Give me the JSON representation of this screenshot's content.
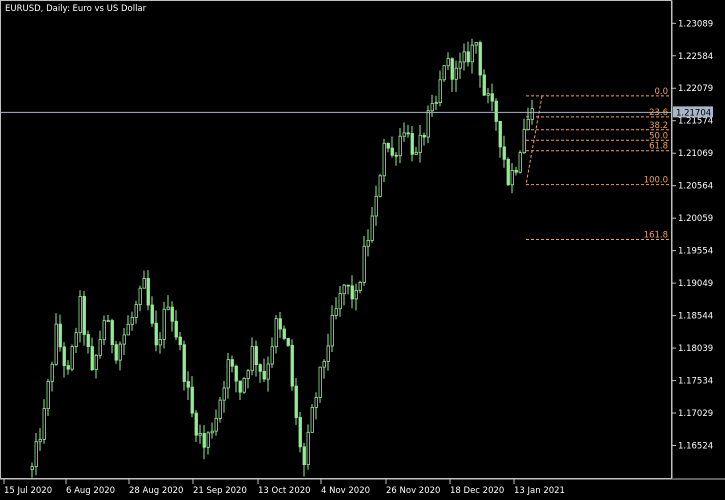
{
  "header": {
    "title": "EURUSD, Daily:  Euro vs US Dollar"
  },
  "colors": {
    "background": "#000000",
    "frame": "#c0c0c0",
    "candles": "#90ee90",
    "fibo": "#f0a050",
    "price_line": "#a7b6c8",
    "price_label_bg": "#a7b6c8",
    "text": "#ffffff"
  },
  "chart_data": {
    "type": "candlestick",
    "symbol": "EURUSD",
    "timeframe": "Daily",
    "y_ticks": [
      "1.23089",
      "1.22584",
      "1.22079",
      "1.21574",
      "1.21069",
      "1.20564",
      "1.20059",
      "1.19554",
      "1.19049",
      "1.18544",
      "1.18039",
      "1.17534",
      "1.17029",
      "1.16524"
    ],
    "x_ticks": [
      "15 Jul 2020",
      "6 Aug 2020",
      "28 Aug 2020",
      "21 Sep 2020",
      "13 Oct 2020",
      "4 Nov 2020",
      "26 Nov 2020",
      "18 Dec 2020",
      "13 Jan 2021"
    ],
    "ylim": [
      1.1605,
      1.2342
    ],
    "current_price": "1.21704",
    "fibonacci": {
      "high": 1.2196,
      "low": 1.2058,
      "levels": [
        {
          "label": "0.0",
          "ratio": 0.0
        },
        {
          "label": "23.6",
          "ratio": 0.236
        },
        {
          "label": "38.2",
          "ratio": 0.382
        },
        {
          "label": "50.0",
          "ratio": 0.5
        },
        {
          "label": "61.8",
          "ratio": 0.618
        },
        {
          "label": "100.0",
          "ratio": 1.0
        },
        {
          "label": "161.8",
          "ratio": 1.618
        }
      ]
    },
    "close_path": [
      [
        0,
        1.1615
      ],
      [
        3,
        1.17
      ],
      [
        6,
        1.183
      ],
      [
        9,
        1.176
      ],
      [
        12,
        1.187
      ],
      [
        15,
        1.176
      ],
      [
        18,
        1.185
      ],
      [
        21,
        1.18
      ],
      [
        25,
        1.185
      ],
      [
        28,
        1.19
      ],
      [
        31,
        1.18
      ],
      [
        34,
        1.188
      ],
      [
        37,
        1.18
      ],
      [
        40,
        1.17
      ],
      [
        43,
        1.165
      ],
      [
        46,
        1.17
      ],
      [
        49,
        1.178
      ],
      [
        52,
        1.174
      ],
      [
        55,
        1.18
      ],
      [
        58,
        1.176
      ],
      [
        61,
        1.184
      ],
      [
        64,
        1.18
      ],
      [
        66,
        1.169
      ],
      [
        68,
        1.162
      ],
      [
        70,
        1.17
      ],
      [
        72,
        1.176
      ],
      [
        75,
        1.184
      ],
      [
        78,
        1.19
      ],
      [
        81,
        1.188
      ],
      [
        83,
        1.195
      ],
      [
        86,
        1.203
      ],
      [
        88,
        1.213
      ],
      [
        90,
        1.21
      ],
      [
        93,
        1.215
      ],
      [
        96,
        1.21
      ],
      [
        99,
        1.216
      ],
      [
        101,
        1.218
      ],
      [
        103,
        1.225
      ],
      [
        106,
        1.223
      ],
      [
        108,
        1.225
      ],
      [
        111,
        1.228
      ],
      [
        113,
        1.22
      ],
      [
        116,
        1.216
      ],
      [
        118,
        1.21
      ],
      [
        119,
        1.2065
      ],
      [
        121,
        1.209
      ],
      [
        123,
        1.215
      ],
      [
        125,
        1.217
      ]
    ]
  }
}
